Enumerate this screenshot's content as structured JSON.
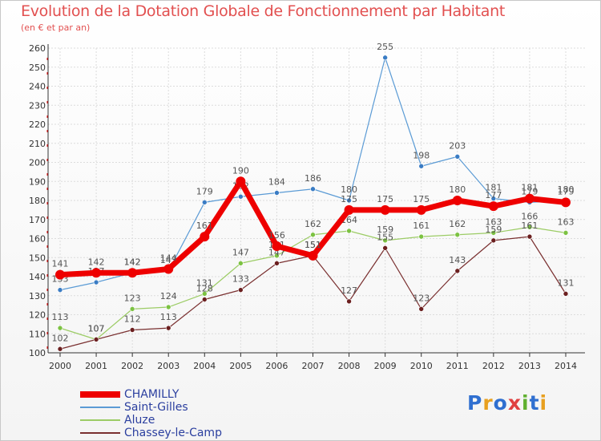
{
  "title": "Evolution de la Dotation Globale de Fonctionnement par Habitant",
  "subtitle": "(en € et par an)",
  "logo": {
    "text": "Proxiti",
    "letters": [
      [
        "P",
        "#2f6fd0"
      ],
      [
        "r",
        "#e8a020"
      ],
      [
        "o",
        "#2f6fd0"
      ],
      [
        "x",
        "#e04040"
      ],
      [
        "i",
        "#60b030"
      ],
      [
        "t",
        "#2f6fd0"
      ],
      [
        "i",
        "#e8a020"
      ]
    ]
  },
  "chart_data": {
    "type": "line",
    "title": "Evolution de la Dotation Globale de Fonctionnement par Habitant",
    "ylabel": "(en € et par an)",
    "xlabel": "",
    "categories": [
      "2000",
      "2001",
      "2002",
      "2003",
      "2004",
      "2005",
      "2006",
      "2007",
      "2008",
      "2009",
      "2010",
      "2011",
      "2012",
      "2013",
      "2014"
    ],
    "ylim": [
      100,
      260
    ],
    "yticks": [
      100,
      110,
      120,
      130,
      140,
      150,
      160,
      170,
      180,
      190,
      200,
      210,
      220,
      230,
      240,
      250,
      260
    ],
    "grid": true,
    "series": [
      {
        "name": "Saint-Gilles",
        "color": "#5b9bd5",
        "marker": "#3a7cc4",
        "width": 1.2,
        "values": [
          133,
          137,
          142,
          143,
          179,
          182,
          184,
          186,
          180,
          255,
          198,
          203,
          181,
          179,
          180
        ],
        "labels": [
          133,
          137,
          142,
          143,
          179,
          182,
          184,
          186,
          180,
          255,
          198,
          203,
          181,
          179,
          180
        ]
      },
      {
        "name": "Aluze",
        "color": "#9ccc65",
        "marker": "#7cc242",
        "width": 1.2,
        "values": [
          113,
          107,
          123,
          124,
          131,
          147,
          151,
          162,
          164,
          159,
          161,
          162,
          163,
          166,
          163
        ],
        "labels": [
          113,
          107,
          123,
          124,
          131,
          147,
          151,
          162,
          164,
          159,
          161,
          162,
          163,
          166,
          163
        ]
      },
      {
        "name": "Chassey-le-Camp",
        "color": "#7a3030",
        "marker": "#6b1f1f",
        "width": 1.2,
        "values": [
          102,
          107,
          112,
          113,
          128,
          133,
          147,
          151,
          127,
          155,
          123,
          143,
          159,
          161,
          131
        ],
        "labels": [
          102,
          107,
          112,
          113,
          128,
          133,
          147,
          151,
          127,
          155,
          123,
          143,
          159,
          161,
          131
        ]
      },
      {
        "name": "CHAMILLY",
        "color": "#ee0000",
        "marker": "#ee0000",
        "width": 7,
        "values": [
          141,
          142,
          142,
          144,
          161,
          190,
          156,
          151,
          175,
          175,
          175,
          180,
          177,
          181,
          179
        ],
        "labels": [
          141,
          142,
          142,
          144,
          161,
          190,
          156,
          151,
          175,
          175,
          175,
          180,
          177,
          181,
          179
        ]
      }
    ],
    "legend": [
      "CHAMILLY",
      "Saint-Gilles",
      "Aluze",
      "Chassey-le-Camp"
    ],
    "legend_position": "bottom-left"
  }
}
